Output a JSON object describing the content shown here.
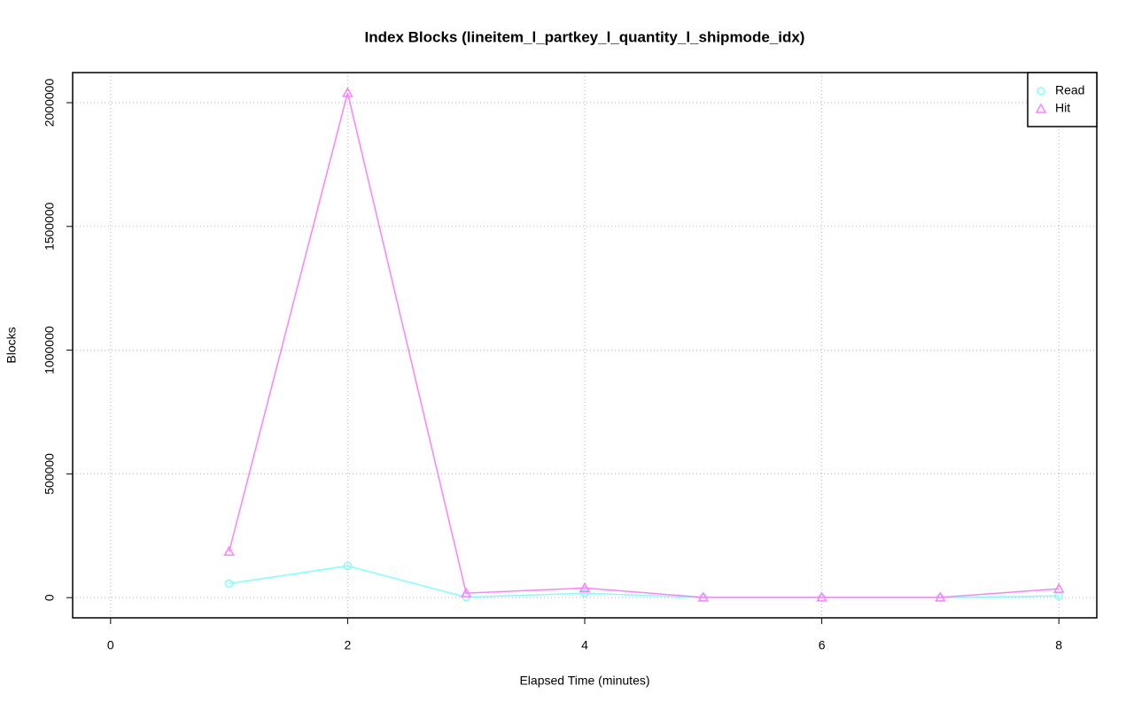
{
  "chart_data": {
    "type": "line",
    "title": "Index Blocks (lineitem_l_partkey_l_quantity_l_shipmode_idx)",
    "xlabel": "Elapsed Time (minutes)",
    "ylabel": "Blocks",
    "x": [
      1,
      2,
      3,
      4,
      5,
      6,
      7,
      8
    ],
    "series": [
      {
        "name": "Read",
        "color": "#80ffff",
        "marker": "circle",
        "values": [
          57000,
          128000,
          2000,
          18000,
          0,
          0,
          0,
          7000
        ]
      },
      {
        "name": "Hit",
        "color": "#ff80ff",
        "marker": "triangle",
        "values": [
          186000,
          2040000,
          18000,
          39000,
          1000,
          1000,
          1000,
          36000
        ]
      }
    ],
    "xlim": [
      -0.32,
      8.32
    ],
    "ylim": [
      -81600,
      2121600
    ],
    "xticks": [
      0,
      2,
      4,
      6,
      8
    ],
    "yticks": [
      0,
      500000,
      1000000,
      1500000,
      2000000
    ],
    "grid": true,
    "legend": "topright"
  }
}
